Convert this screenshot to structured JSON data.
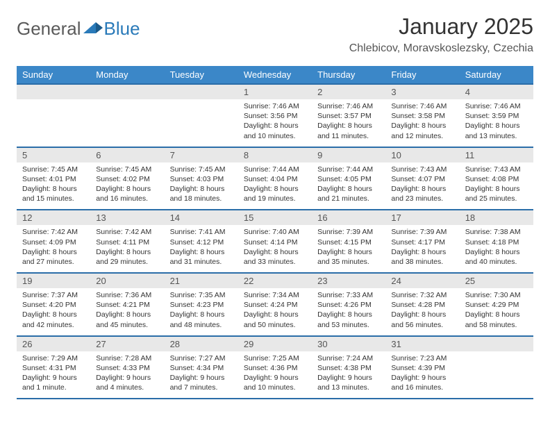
{
  "brand": {
    "name1": "General",
    "name2": "Blue"
  },
  "title": "January 2025",
  "location": "Chlebicov, Moravskoslezsky, Czechia",
  "colors": {
    "header_bg": "#3b87c8",
    "header_border": "#2a6da8",
    "daynum_bg": "#e8e8e8",
    "text": "#333333",
    "brand_gray": "#5a5a5a",
    "brand_blue": "#2a7ab9"
  },
  "weekdays": [
    "Sunday",
    "Monday",
    "Tuesday",
    "Wednesday",
    "Thursday",
    "Friday",
    "Saturday"
  ],
  "weeks": [
    [
      null,
      null,
      null,
      {
        "n": "1",
        "sr": "7:46 AM",
        "ss": "3:56 PM",
        "dl": "8 hours and 10 minutes."
      },
      {
        "n": "2",
        "sr": "7:46 AM",
        "ss": "3:57 PM",
        "dl": "8 hours and 11 minutes."
      },
      {
        "n": "3",
        "sr": "7:46 AM",
        "ss": "3:58 PM",
        "dl": "8 hours and 12 minutes."
      },
      {
        "n": "4",
        "sr": "7:46 AM",
        "ss": "3:59 PM",
        "dl": "8 hours and 13 minutes."
      }
    ],
    [
      {
        "n": "5",
        "sr": "7:45 AM",
        "ss": "4:01 PM",
        "dl": "8 hours and 15 minutes."
      },
      {
        "n": "6",
        "sr": "7:45 AM",
        "ss": "4:02 PM",
        "dl": "8 hours and 16 minutes."
      },
      {
        "n": "7",
        "sr": "7:45 AM",
        "ss": "4:03 PM",
        "dl": "8 hours and 18 minutes."
      },
      {
        "n": "8",
        "sr": "7:44 AM",
        "ss": "4:04 PM",
        "dl": "8 hours and 19 minutes."
      },
      {
        "n": "9",
        "sr": "7:44 AM",
        "ss": "4:05 PM",
        "dl": "8 hours and 21 minutes."
      },
      {
        "n": "10",
        "sr": "7:43 AM",
        "ss": "4:07 PM",
        "dl": "8 hours and 23 minutes."
      },
      {
        "n": "11",
        "sr": "7:43 AM",
        "ss": "4:08 PM",
        "dl": "8 hours and 25 minutes."
      }
    ],
    [
      {
        "n": "12",
        "sr": "7:42 AM",
        "ss": "4:09 PM",
        "dl": "8 hours and 27 minutes."
      },
      {
        "n": "13",
        "sr": "7:42 AM",
        "ss": "4:11 PM",
        "dl": "8 hours and 29 minutes."
      },
      {
        "n": "14",
        "sr": "7:41 AM",
        "ss": "4:12 PM",
        "dl": "8 hours and 31 minutes."
      },
      {
        "n": "15",
        "sr": "7:40 AM",
        "ss": "4:14 PM",
        "dl": "8 hours and 33 minutes."
      },
      {
        "n": "16",
        "sr": "7:39 AM",
        "ss": "4:15 PM",
        "dl": "8 hours and 35 minutes."
      },
      {
        "n": "17",
        "sr": "7:39 AM",
        "ss": "4:17 PM",
        "dl": "8 hours and 38 minutes."
      },
      {
        "n": "18",
        "sr": "7:38 AM",
        "ss": "4:18 PM",
        "dl": "8 hours and 40 minutes."
      }
    ],
    [
      {
        "n": "19",
        "sr": "7:37 AM",
        "ss": "4:20 PM",
        "dl": "8 hours and 42 minutes."
      },
      {
        "n": "20",
        "sr": "7:36 AM",
        "ss": "4:21 PM",
        "dl": "8 hours and 45 minutes."
      },
      {
        "n": "21",
        "sr": "7:35 AM",
        "ss": "4:23 PM",
        "dl": "8 hours and 48 minutes."
      },
      {
        "n": "22",
        "sr": "7:34 AM",
        "ss": "4:24 PM",
        "dl": "8 hours and 50 minutes."
      },
      {
        "n": "23",
        "sr": "7:33 AM",
        "ss": "4:26 PM",
        "dl": "8 hours and 53 minutes."
      },
      {
        "n": "24",
        "sr": "7:32 AM",
        "ss": "4:28 PM",
        "dl": "8 hours and 56 minutes."
      },
      {
        "n": "25",
        "sr": "7:30 AM",
        "ss": "4:29 PM",
        "dl": "8 hours and 58 minutes."
      }
    ],
    [
      {
        "n": "26",
        "sr": "7:29 AM",
        "ss": "4:31 PM",
        "dl": "9 hours and 1 minute."
      },
      {
        "n": "27",
        "sr": "7:28 AM",
        "ss": "4:33 PM",
        "dl": "9 hours and 4 minutes."
      },
      {
        "n": "28",
        "sr": "7:27 AM",
        "ss": "4:34 PM",
        "dl": "9 hours and 7 minutes."
      },
      {
        "n": "29",
        "sr": "7:25 AM",
        "ss": "4:36 PM",
        "dl": "9 hours and 10 minutes."
      },
      {
        "n": "30",
        "sr": "7:24 AM",
        "ss": "4:38 PM",
        "dl": "9 hours and 13 minutes."
      },
      {
        "n": "31",
        "sr": "7:23 AM",
        "ss": "4:39 PM",
        "dl": "9 hours and 16 minutes."
      },
      null
    ]
  ],
  "labels": {
    "sunrise": "Sunrise:",
    "sunset": "Sunset:",
    "daylight": "Daylight:"
  }
}
